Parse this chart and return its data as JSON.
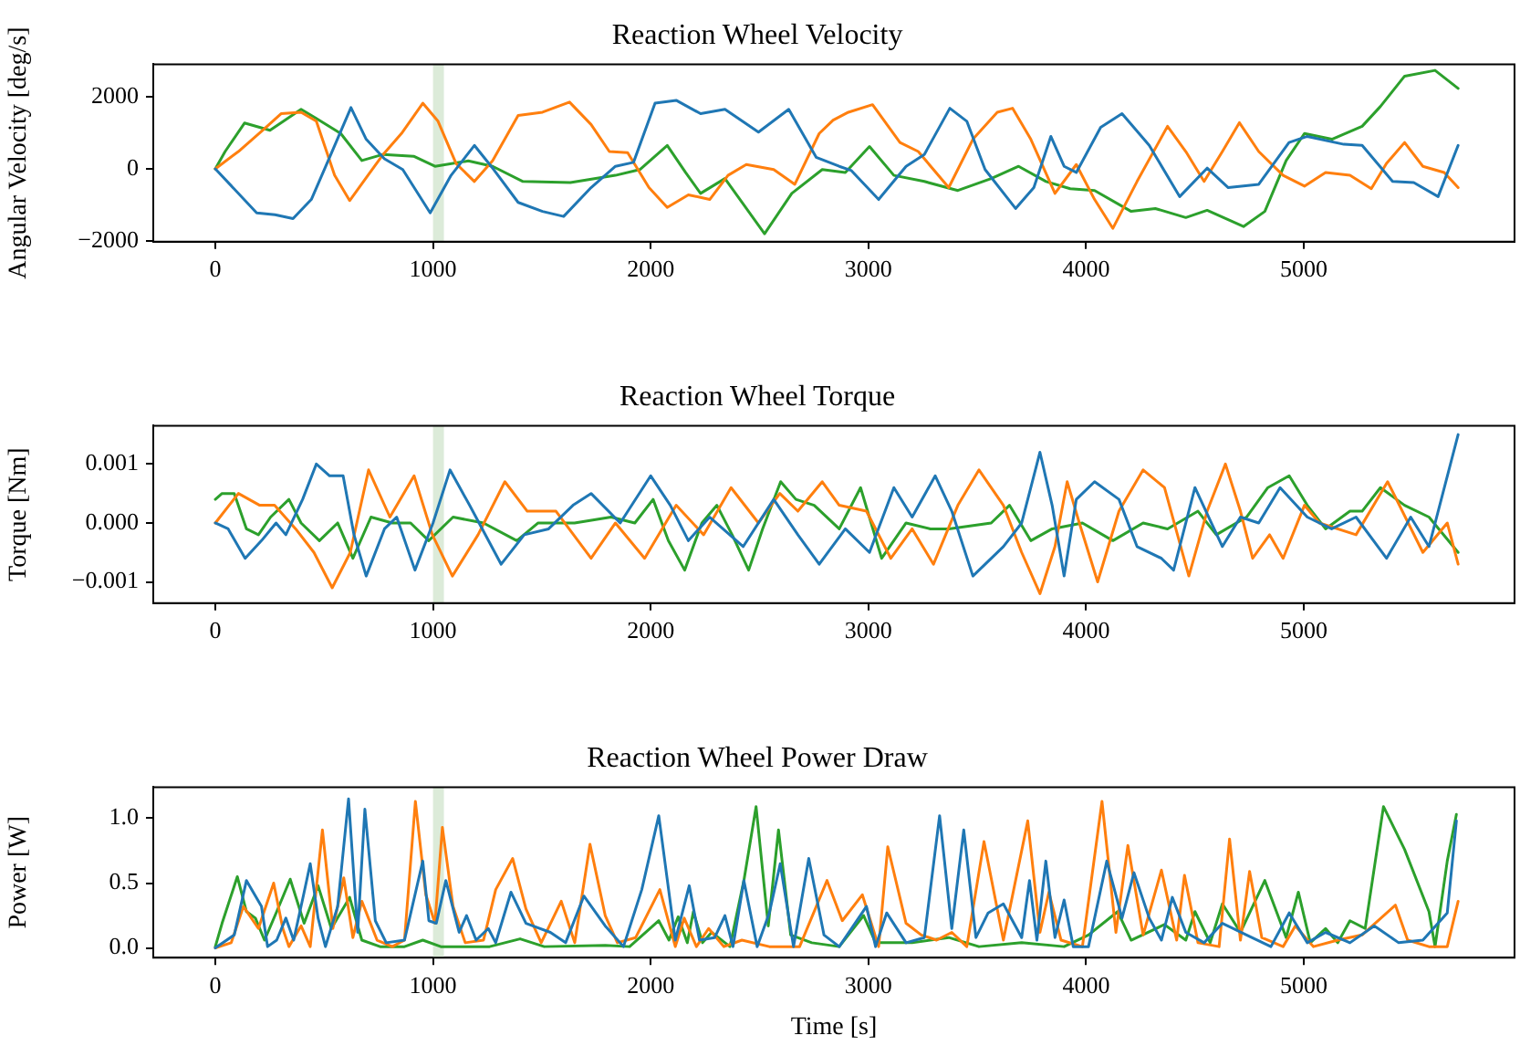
{
  "chart_data": [
    {
      "type": "line",
      "title": "Reaction Wheel Velocity",
      "ylabel": "Angular Velocity [deg/s]",
      "xlim": [
        -285,
        5968
      ],
      "xticks": [
        0,
        1000,
        2000,
        3000,
        4000,
        5000
      ],
      "ylim": [
        -2020,
        2900
      ],
      "yticks": [
        {
          "value": -2000,
          "label": "−2000"
        },
        0,
        2000
      ],
      "grid": false,
      "marker": "none",
      "line_style": "solid",
      "bands": [
        {
          "axis": "x",
          "from": 1000,
          "to": 1050,
          "color": "#dcebd9"
        }
      ],
      "series": [
        {
          "color": "#1f77b4",
          "x": [
            0,
            190,
            274,
            357,
            441,
            525,
            623,
            693,
            777,
            861,
            987,
            1083,
            1190,
            1279,
            1391,
            1503,
            1600,
            1726,
            1838,
            1921,
            2020,
            2117,
            2229,
            2341,
            2495,
            2634,
            2760,
            2866,
            2922,
            3047,
            3173,
            3257,
            3374,
            3452,
            3536,
            3676,
            3760,
            3838,
            3899,
            3955,
            4067,
            4165,
            4290,
            4430,
            4556,
            4653,
            4793,
            4932,
            5016,
            5184,
            5268,
            5408,
            5505,
            5617,
            5709
          ],
          "values": [
            0,
            -1220,
            -1270,
            -1380,
            -850,
            320,
            1700,
            820,
            280,
            -20,
            -1220,
            -180,
            650,
            -20,
            -930,
            -1180,
            -1320,
            -520,
            70,
            180,
            1820,
            1900,
            1530,
            1650,
            1020,
            1650,
            320,
            70,
            -50,
            -850,
            70,
            400,
            1680,
            1320,
            -20,
            -1100,
            -520,
            900,
            70,
            -100,
            1150,
            1530,
            650,
            -770,
            20,
            -520,
            -430,
            730,
            900,
            680,
            650,
            -350,
            -380,
            -770,
            650
          ]
        },
        {
          "color": "#ff7f0e",
          "x": [
            0,
            106,
            218,
            302,
            394,
            464,
            548,
            617,
            701,
            771,
            855,
            953,
            1023,
            1106,
            1190,
            1274,
            1391,
            1503,
            1627,
            1726,
            1810,
            1894,
            1992,
            2076,
            2173,
            2271,
            2355,
            2439,
            2565,
            2662,
            2774,
            2838,
            2908,
            3019,
            3145,
            3229,
            3369,
            3480,
            3592,
            3662,
            3746,
            3857,
            3955,
            4039,
            4123,
            4234,
            4374,
            4458,
            4542,
            4626,
            4704,
            4793,
            4905,
            5003,
            5100,
            5212,
            5310,
            5380,
            5463,
            5547,
            5645,
            5709
          ],
          "values": [
            0,
            480,
            1070,
            1530,
            1570,
            1320,
            -180,
            -880,
            -180,
            400,
            980,
            1820,
            1320,
            150,
            -350,
            230,
            1480,
            1570,
            1850,
            1230,
            480,
            450,
            -520,
            -1070,
            -720,
            -850,
            -180,
            120,
            -20,
            -430,
            980,
            1350,
            1570,
            1780,
            730,
            480,
            -520,
            820,
            1570,
            1680,
            820,
            -680,
            120,
            -850,
            -1650,
            -350,
            1180,
            480,
            -350,
            480,
            1280,
            480,
            -180,
            -480,
            -100,
            -180,
            -550,
            150,
            730,
            70,
            -100,
            -520
          ]
        },
        {
          "color": "#2ca02c",
          "x": [
            0,
            45,
            134,
            251,
            394,
            464,
            576,
            673,
            771,
            911,
            1009,
            1162,
            1274,
            1413,
            1631,
            1838,
            1950,
            2076,
            2160,
            2229,
            2341,
            2523,
            2648,
            2788,
            2894,
            3005,
            3117,
            3257,
            3411,
            3564,
            3690,
            3816,
            3927,
            4039,
            4207,
            4318,
            4458,
            4556,
            4723,
            4821,
            4919,
            5003,
            5129,
            5268,
            5352,
            5463,
            5603,
            5709
          ],
          "values": [
            0,
            480,
            1270,
            1070,
            1650,
            1400,
            980,
            230,
            400,
            350,
            70,
            220,
            70,
            -350,
            -380,
            -180,
            -20,
            650,
            -100,
            -680,
            -270,
            -1800,
            -680,
            -20,
            -100,
            620,
            -180,
            -350,
            -600,
            -270,
            70,
            -350,
            -550,
            -600,
            -1180,
            -1100,
            -1350,
            -1150,
            -1600,
            -1180,
            230,
            980,
            820,
            1180,
            1730,
            2570,
            2730,
            2230
          ]
        }
      ]
    },
    {
      "type": "line",
      "title": "Reaction Wheel Torque",
      "ylabel": "Torque [Nm]",
      "xlim": [
        -285,
        5968
      ],
      "xticks": [
        0,
        1000,
        2000,
        3000,
        4000,
        5000
      ],
      "ylim": [
        -0.00136,
        0.00165
      ],
      "yticks": [
        {
          "value": -0.001,
          "label": "−0.001"
        },
        {
          "value": 0,
          "label": "0.000"
        },
        0.001
      ],
      "grid": false,
      "marker": "none",
      "line_style": "solid",
      "bands": [
        {
          "axis": "x",
          "from": 1000,
          "to": 1050,
          "color": "#dcebd9"
        }
      ],
      "series": [
        {
          "color": "#1f77b4",
          "x": [
            0,
            59,
            137,
            212,
            279,
            324,
            401,
            464,
            525,
            587,
            637,
            693,
            777,
            833,
            917,
            1000,
            1078,
            1168,
            1313,
            1419,
            1531,
            1643,
            1726,
            1860,
            2000,
            2090,
            2173,
            2271,
            2425,
            2565,
            2676,
            2774,
            2894,
            3005,
            3117,
            3201,
            3307,
            3383,
            3480,
            3620,
            3704,
            3788,
            3844,
            3899,
            3955,
            4039,
            4151,
            4234,
            4346,
            4402,
            4500,
            4626,
            4709,
            4793,
            4891,
            5016,
            5128,
            5240,
            5380,
            5491,
            5575,
            5709
          ],
          "values": [
            0,
            -0.0001,
            -0.0006,
            -0.0003,
            0,
            -0.0002,
            0.0004,
            0.001,
            0.0008,
            0.0008,
            -0.0002,
            -0.0009,
            -0.0001,
            0.0001,
            -0.0008,
            0,
            0.0009,
            0.0003,
            -0.0007,
            -0.0002,
            -0.0001,
            0.0003,
            0.0005,
            0,
            0.0008,
            0.0003,
            -0.0003,
            0.0001,
            -0.0004,
            0.0004,
            -0.0002,
            -0.0007,
            -0.0001,
            -0.0005,
            0.0006,
            0.0001,
            0.0008,
            0.0002,
            -0.0009,
            -0.0004,
            0,
            0.0012,
            0.0003,
            -0.0009,
            0.0004,
            0.0007,
            0.0004,
            -0.0004,
            -0.0006,
            -0.0008,
            0.0006,
            -0.0004,
            0.0001,
            0,
            0.0006,
            0.0001,
            -0.0001,
            0.0001,
            -0.0006,
            0.0001,
            -0.0004,
            0.0015
          ]
        },
        {
          "color": "#ff7f0e",
          "x": [
            0,
            106,
            204,
            272,
            369,
            453,
            537,
            620,
            704,
            802,
            913,
            997,
            1089,
            1207,
            1330,
            1433,
            1565,
            1726,
            1838,
            1972,
            2117,
            2243,
            2369,
            2495,
            2593,
            2676,
            2788,
            2866,
            2991,
            3103,
            3201,
            3299,
            3411,
            3508,
            3620,
            3704,
            3788,
            3857,
            3913,
            3969,
            4053,
            4151,
            4262,
            4360,
            4472,
            4556,
            4640,
            4709,
            4765,
            4843,
            4905,
            5003,
            5072,
            5240,
            5385,
            5547,
            5659,
            5709
          ],
          "values": [
            0,
            0.0005,
            0.0003,
            0.0003,
            -0.0001,
            -0.0005,
            -0.0011,
            -0.0005,
            0.0009,
            0.0001,
            0.0008,
            -0.0002,
            -0.0009,
            -0.0002,
            0.0007,
            0.0002,
            0.0002,
            -0.0006,
            0,
            -0.0006,
            0.0003,
            -0.0002,
            0.0006,
            0,
            0.0005,
            0.0002,
            0.0007,
            0.0003,
            0.0002,
            -0.0006,
            -0.0001,
            -0.0007,
            0.0003,
            0.0009,
            0.0003,
            -0.0005,
            -0.0012,
            -0.0004,
            0.0007,
            0,
            -0.001,
            0.0002,
            0.0009,
            0.0006,
            -0.0009,
            0.0002,
            0.001,
            0.0002,
            -0.0006,
            -0.0002,
            -0.0006,
            0.0003,
            0,
            -0.0002,
            0.0007,
            -0.0005,
            0,
            -0.0007
          ]
        },
        {
          "color": "#2ca02c",
          "x": [
            0,
            31,
            87,
            143,
            198,
            254,
            338,
            394,
            478,
            562,
            632,
            715,
            813,
            897,
            980,
            1092,
            1232,
            1385,
            1483,
            1650,
            1818,
            1927,
            2011,
            2081,
            2156,
            2235,
            2304,
            2374,
            2450,
            2514,
            2597,
            2667,
            2751,
            2866,
            2964,
            3061,
            3173,
            3285,
            3369,
            3564,
            3648,
            3746,
            3844,
            3983,
            4123,
            4262,
            4374,
            4514,
            4598,
            4737,
            4835,
            4933,
            5016,
            5100,
            5212,
            5268,
            5352,
            5463,
            5575,
            5709
          ],
          "values": [
            0.0004,
            0.0005,
            0.0005,
            -0.0001,
            -0.0002,
            0.0001,
            0.0004,
            0,
            -0.0003,
            0,
            -0.0006,
            0.0001,
            0,
            0,
            -0.0003,
            0.0001,
            0,
            -0.0003,
            0,
            0,
            0.0001,
            0,
            0.0004,
            -0.0003,
            -0.0008,
            0,
            0.0003,
            -0.0002,
            -0.0008,
            -0.0001,
            0.0007,
            0.0004,
            0.0003,
            -0.0001,
            0.0006,
            -0.0006,
            0,
            -0.0001,
            -0.0001,
            0,
            0.0003,
            -0.0003,
            -0.0001,
            0,
            -0.0003,
            0,
            -0.0001,
            0.0002,
            -0.0002,
            0.0001,
            0.0006,
            0.0008,
            0.0003,
            -0.0001,
            0.0002,
            0.0002,
            0.0006,
            0.0003,
            0.0001,
            -0.0005
          ]
        }
      ]
    },
    {
      "type": "line",
      "title": "Reaction Wheel Power Draw",
      "xlabel": "Time [s]",
      "ylabel": "Power [W]",
      "xlim": [
        -285,
        5968
      ],
      "xticks": [
        0,
        1000,
        2000,
        3000,
        4000,
        5000
      ],
      "ylim": [
        -0.075,
        1.24
      ],
      "yticks": [
        {
          "value": 0,
          "label": "0.0"
        },
        0.5,
        {
          "value": 1,
          "label": "1.0"
        }
      ],
      "grid": false,
      "marker": "none",
      "line_style": "solid",
      "bands": [
        {
          "axis": "x",
          "from": 1000,
          "to": 1050,
          "color": "#dcebd9"
        }
      ],
      "series": [
        {
          "color": "#1f77b4",
          "x": [
            0,
            87,
            143,
            212,
            240,
            282,
            324,
            360,
            408,
            436,
            472,
            506,
            562,
            612,
            654,
            687,
            735,
            785,
            869,
            953,
            981,
            1015,
            1059,
            1120,
            1154,
            1198,
            1254,
            1288,
            1358,
            1427,
            1539,
            1609,
            1693,
            1791,
            1875,
            1959,
            2037,
            2113,
            2177,
            2224,
            2294,
            2341,
            2378,
            2428,
            2489,
            2545,
            2595,
            2656,
            2726,
            2796,
            2866,
            2991,
            3033,
            3084,
            3173,
            3257,
            3327,
            3383,
            3438,
            3494,
            3550,
            3620,
            3704,
            3740,
            3774,
            3815,
            3857,
            3899,
            3941,
            4011,
            4095,
            4165,
            4220,
            4290,
            4346,
            4396,
            4458,
            4542,
            4626,
            4737,
            4849,
            4933,
            5016,
            5100,
            5212,
            5324,
            5436,
            5547,
            5659,
            5701
          ],
          "values": [
            0,
            0.1,
            0.52,
            0.32,
            0.01,
            0.06,
            0.23,
            0.06,
            0.43,
            0.65,
            0.23,
            0.01,
            0.32,
            1.15,
            0.12,
            1.07,
            0.21,
            0.04,
            0.06,
            0.67,
            0.21,
            0.19,
            0.52,
            0.12,
            0.25,
            0.06,
            0.15,
            0.04,
            0.43,
            0.19,
            0.12,
            0.04,
            0.4,
            0.17,
            0.01,
            0.45,
            1.02,
            0.06,
            0.48,
            0.06,
            0.08,
            0.25,
            0.01,
            0.52,
            0.01,
            0.27,
            0.65,
            0.01,
            0.69,
            0.1,
            0.01,
            0.32,
            0.01,
            0.27,
            0.04,
            0.08,
            1.02,
            0.15,
            0.91,
            0.08,
            0.27,
            0.34,
            0.08,
            0.52,
            0.06,
            0.67,
            0.08,
            0.37,
            0.01,
            0.01,
            0.67,
            0.23,
            0.58,
            0.23,
            0.06,
            0.39,
            0.12,
            0.04,
            0.19,
            0.1,
            0.01,
            0.27,
            0.04,
            0.12,
            0.04,
            0.17,
            0.04,
            0.06,
            0.27,
            0.98
          ]
        },
        {
          "color": "#ff7f0e",
          "x": [
            0,
            73,
            129,
            198,
            268,
            310,
            338,
            394,
            436,
            492,
            540,
            590,
            632,
            673,
            743,
            813,
            869,
            919,
            967,
            1009,
            1043,
            1092,
            1148,
            1232,
            1288,
            1366,
            1427,
            1497,
            1589,
            1651,
            1721,
            1791,
            1847,
            1931,
            2042,
            2113,
            2154,
            2210,
            2266,
            2336,
            2419,
            2545,
            2684,
            2810,
            2880,
            2972,
            3047,
            3089,
            3173,
            3243,
            3313,
            3383,
            3452,
            3531,
            3620,
            3732,
            3788,
            3829,
            3885,
            3983,
            4073,
            4137,
            4192,
            4262,
            4346,
            4416,
            4452,
            4514,
            4611,
            4659,
            4709,
            4751,
            4807,
            4905,
            4961,
            5044,
            5156,
            5268,
            5421,
            5477,
            5575,
            5659,
            5709
          ],
          "values": [
            0,
            0.04,
            0.32,
            0.15,
            0.5,
            0.15,
            0.01,
            0.17,
            0.01,
            0.91,
            0.15,
            0.54,
            0.08,
            0.36,
            0.06,
            0.01,
            0.06,
            1.13,
            0.41,
            0.19,
            0.93,
            0.32,
            0.04,
            0.06,
            0.45,
            0.69,
            0.3,
            0.04,
            0.36,
            0.04,
            0.8,
            0.25,
            0.04,
            0.08,
            0.45,
            0.01,
            0.23,
            0.01,
            0.15,
            0.01,
            0.06,
            0.01,
            0.01,
            0.52,
            0.21,
            0.41,
            0.01,
            0.78,
            0.19,
            0.1,
            0.06,
            0.12,
            0.01,
            0.82,
            0.06,
            0.98,
            0.12,
            0.43,
            0.06,
            0.01,
            1.13,
            0.12,
            0.79,
            0.1,
            0.6,
            0.06,
            0.56,
            0.04,
            0.01,
            0.84,
            0.06,
            0.59,
            0.08,
            0.01,
            0.17,
            0.01,
            0.06,
            0.1,
            0.33,
            0.06,
            0.01,
            0.01,
            0.36
          ]
        },
        {
          "color": "#2ca02c",
          "x": [
            0,
            31,
            101,
            143,
            184,
            226,
            282,
            344,
            408,
            472,
            533,
            617,
            673,
            757,
            869,
            953,
            1036,
            1260,
            1400,
            1511,
            1791,
            1903,
            2037,
            2084,
            2126,
            2168,
            2196,
            2238,
            2280,
            2364,
            2428,
            2484,
            2540,
            2587,
            2643,
            2740,
            2866,
            2978,
            3033,
            3201,
            3369,
            3508,
            3704,
            3899,
            4011,
            4145,
            4207,
            4360,
            4458,
            4500,
            4570,
            4626,
            4709,
            4821,
            4919,
            4975,
            5030,
            5100,
            5156,
            5212,
            5282,
            5366,
            5463,
            5575,
            5603,
            5659,
            5701
          ],
          "values": [
            0.01,
            0.19,
            0.55,
            0.28,
            0.23,
            0.06,
            0.28,
            0.53,
            0.19,
            0.48,
            0.15,
            0.39,
            0.06,
            0.01,
            0.01,
            0.06,
            0.01,
            0.01,
            0.07,
            0.01,
            0.02,
            0.01,
            0.21,
            0.06,
            0.24,
            0.04,
            0.28,
            0.04,
            0.12,
            0.01,
            0.52,
            1.09,
            0.17,
            0.91,
            0.1,
            0.04,
            0.01,
            0.25,
            0.04,
            0.04,
            0.08,
            0.01,
            0.04,
            0.01,
            0.1,
            0.28,
            0.06,
            0.18,
            0.06,
            0.28,
            0.04,
            0.34,
            0.12,
            0.52,
            0.08,
            0.43,
            0.04,
            0.15,
            0.04,
            0.21,
            0.15,
            1.09,
            0.76,
            0.28,
            0.01,
            0.67,
            1.03
          ]
        }
      ]
    }
  ]
}
